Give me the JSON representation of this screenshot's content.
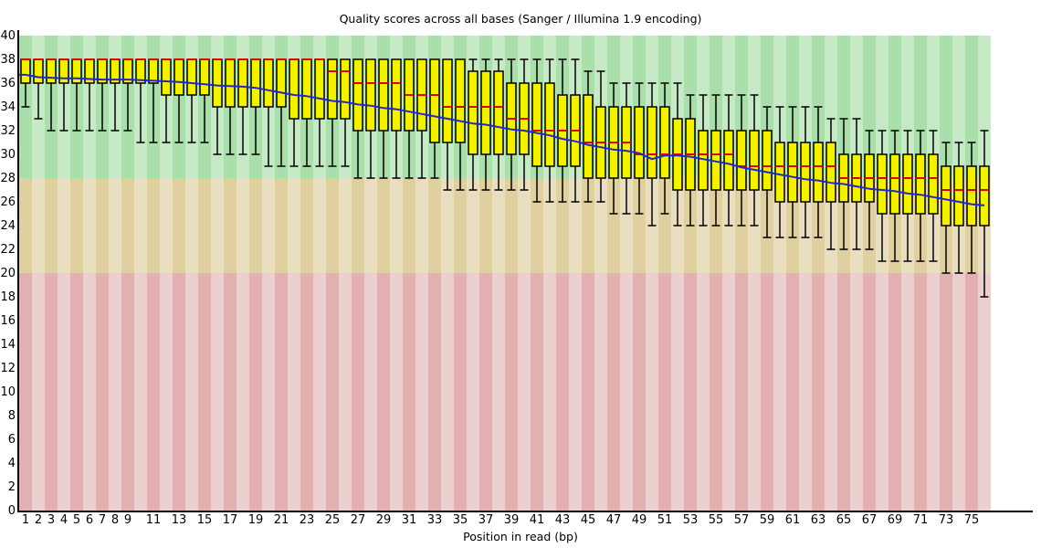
{
  "chart_data": {
    "type": "boxplot",
    "title": "Quality scores across all bases (Sanger / Illumina 1.9 encoding)",
    "xlabel": "Position in read (bp)",
    "ylabel": "",
    "ylim": [
      0,
      40
    ],
    "grid": false,
    "legend": "none",
    "y_ticks": [
      0,
      2,
      4,
      6,
      8,
      10,
      12,
      14,
      16,
      18,
      20,
      22,
      24,
      26,
      28,
      30,
      32,
      34,
      36,
      38,
      40
    ],
    "x_tick_labels": [
      1,
      2,
      3,
      4,
      5,
      6,
      7,
      8,
      9,
      11,
      13,
      15,
      17,
      19,
      21,
      23,
      25,
      27,
      29,
      31,
      33,
      35,
      37,
      39,
      41,
      43,
      45,
      47,
      49,
      51,
      53,
      55,
      57,
      59,
      61,
      63,
      65,
      67,
      69,
      71,
      73,
      75
    ],
    "positions": {
      "from": 1,
      "to": 76
    },
    "bands": [
      {
        "name": "good",
        "from": 28,
        "to": 40,
        "color": "#aadeaa",
        "color_alt": "#c6eac6"
      },
      {
        "name": "reasonable",
        "from": 20,
        "to": 28,
        "color": "#e0d0a0",
        "color_alt": "#eadec0"
      },
      {
        "name": "poor",
        "from": 0,
        "to": 20,
        "color": "#e2b0b0",
        "color_alt": "#ecd0d0"
      }
    ],
    "colors": {
      "box_fill": "#f2f200",
      "box_stroke": "#000000",
      "median": "#dd0000",
      "mean": "#2525cc",
      "whisker": "#000000",
      "axis": "#000000"
    },
    "box_fields": [
      "p10",
      "q1",
      "median",
      "q3",
      "p90",
      "mean"
    ],
    "boxes": [
      [
        34,
        36,
        38,
        38,
        38,
        36.7
      ],
      [
        33,
        36,
        38,
        38,
        38,
        36.5
      ],
      [
        32,
        36,
        38,
        38,
        38,
        36.45
      ],
      [
        32,
        36,
        38,
        38,
        38,
        36.4
      ],
      [
        32,
        36,
        38,
        38,
        38,
        36.4
      ],
      [
        32,
        36,
        38,
        38,
        38,
        36.35
      ],
      [
        32,
        36,
        38,
        38,
        38,
        36.3
      ],
      [
        32,
        36,
        38,
        38,
        38,
        36.3
      ],
      [
        32,
        36,
        38,
        38,
        38,
        36.3
      ],
      [
        31,
        36,
        38,
        38,
        38,
        36.25
      ],
      [
        31,
        36,
        38,
        38,
        38,
        36.2
      ],
      [
        31,
        35,
        38,
        38,
        38,
        36.15
      ],
      [
        31,
        35,
        38,
        38,
        38,
        36.1
      ],
      [
        31,
        35,
        38,
        38,
        38,
        36.0
      ],
      [
        31,
        35,
        38,
        38,
        38,
        35.9
      ],
      [
        30,
        34,
        38,
        38,
        38,
        35.8
      ],
      [
        30,
        34,
        38,
        38,
        38,
        35.75
      ],
      [
        30,
        34,
        38,
        38,
        38,
        35.7
      ],
      [
        30,
        34,
        38,
        38,
        38,
        35.6
      ],
      [
        29,
        34,
        38,
        38,
        38,
        35.4
      ],
      [
        29,
        34,
        38,
        38,
        38,
        35.2
      ],
      [
        29,
        33,
        38,
        38,
        38,
        35.0
      ],
      [
        29,
        33,
        38,
        38,
        38,
        34.9
      ],
      [
        29,
        33,
        38,
        38,
        38,
        34.7
      ],
      [
        29,
        33,
        37,
        38,
        38,
        34.5
      ],
      [
        29,
        33,
        37,
        38,
        38,
        34.4
      ],
      [
        28,
        32,
        36,
        38,
        38,
        34.2
      ],
      [
        28,
        32,
        36,
        38,
        38,
        34.1
      ],
      [
        28,
        32,
        36,
        38,
        38,
        33.9
      ],
      [
        28,
        32,
        36,
        38,
        38,
        33.8
      ],
      [
        28,
        32,
        35,
        38,
        38,
        33.6
      ],
      [
        28,
        32,
        35,
        38,
        38,
        33.4
      ],
      [
        28,
        31,
        35,
        38,
        38,
        33.2
      ],
      [
        27,
        31,
        34,
        38,
        38,
        33.0
      ],
      [
        27,
        31,
        34,
        38,
        38,
        32.8
      ],
      [
        27,
        30,
        34,
        37,
        38,
        32.6
      ],
      [
        27,
        30,
        34,
        37,
        38,
        32.5
      ],
      [
        27,
        30,
        34,
        37,
        38,
        32.3
      ],
      [
        27,
        30,
        33,
        36,
        38,
        32.1
      ],
      [
        27,
        30,
        33,
        36,
        38,
        32.0
      ],
      [
        26,
        29,
        32,
        36,
        38,
        31.8
      ],
      [
        26,
        29,
        32,
        36,
        38,
        31.6
      ],
      [
        26,
        29,
        32,
        35,
        38,
        31.3
      ],
      [
        26,
        29,
        32,
        35,
        38,
        31.1
      ],
      [
        26,
        28,
        31,
        35,
        37,
        30.8
      ],
      [
        26,
        28,
        31,
        34,
        37,
        30.6
      ],
      [
        25,
        28,
        31,
        34,
        36,
        30.4
      ],
      [
        25,
        28,
        31,
        34,
        36,
        30.3
      ],
      [
        25,
        28,
        30,
        34,
        36,
        30.1
      ],
      [
        24,
        28,
        30,
        34,
        36,
        29.6
      ],
      [
        25,
        28,
        30,
        34,
        36,
        29.9
      ],
      [
        24,
        27,
        30,
        33,
        36,
        29.9
      ],
      [
        24,
        27,
        30,
        33,
        35,
        29.8
      ],
      [
        24,
        27,
        30,
        32,
        35,
        29.6
      ],
      [
        24,
        27,
        30,
        32,
        35,
        29.4
      ],
      [
        24,
        27,
        30,
        32,
        35,
        29.2
      ],
      [
        24,
        27,
        29,
        32,
        35,
        28.9
      ],
      [
        24,
        27,
        29,
        32,
        35,
        28.7
      ],
      [
        23,
        27,
        29,
        32,
        34,
        28.5
      ],
      [
        23,
        26,
        29,
        31,
        34,
        28.3
      ],
      [
        23,
        26,
        29,
        31,
        34,
        28.1
      ],
      [
        23,
        26,
        29,
        31,
        34,
        27.9
      ],
      [
        23,
        26,
        29,
        31,
        34,
        27.8
      ],
      [
        22,
        26,
        29,
        31,
        33,
        27.6
      ],
      [
        22,
        26,
        28,
        30,
        33,
        27.5
      ],
      [
        22,
        26,
        28,
        30,
        33,
        27.3
      ],
      [
        22,
        26,
        28,
        30,
        32,
        27.1
      ],
      [
        21,
        25,
        28,
        30,
        32,
        27.0
      ],
      [
        21,
        25,
        28,
        30,
        32,
        26.9
      ],
      [
        21,
        25,
        28,
        30,
        32,
        26.7
      ],
      [
        21,
        25,
        28,
        30,
        32,
        26.6
      ],
      [
        21,
        25,
        28,
        30,
        32,
        26.4
      ],
      [
        20,
        24,
        27,
        29,
        31,
        26.2
      ],
      [
        20,
        24,
        27,
        29,
        31,
        26.0
      ],
      [
        20,
        24,
        27,
        29,
        31,
        25.8
      ],
      [
        18,
        24,
        27,
        29,
        32,
        25.7
      ]
    ]
  }
}
